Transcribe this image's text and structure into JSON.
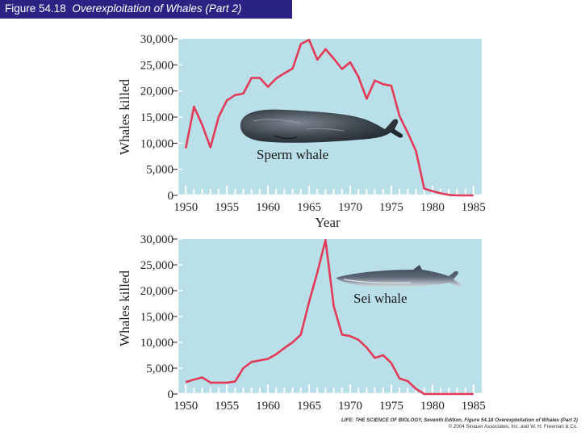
{
  "title": {
    "figure": "Figure 54.18",
    "subtitle": "Overexploitation of Whales (Part 2)"
  },
  "colors": {
    "title_bg": "#2b2383",
    "plot_bg": "#b9dfe9",
    "line": "#e23a57",
    "tick": "#222222"
  },
  "credit": {
    "line1": "LIFE: THE SCIENCE OF BIOLOGY, Seventh Edition, Figure 54.18 Overexploitation of Whales (Part 2)",
    "line2": "© 2004 Sinauer Associates, Inc. and W. H. Freeman & Co."
  },
  "chart_data": [
    {
      "type": "line",
      "title": "",
      "annotation": "Sperm whale",
      "xlabel": "Year",
      "ylabel": "Whales killed",
      "xlim": [
        1949,
        1986
      ],
      "ylim": [
        0,
        30000
      ],
      "xticks": [
        1950,
        1955,
        1960,
        1965,
        1970,
        1975,
        1980,
        1985
      ],
      "yticks": [
        0,
        5000,
        10000,
        15000,
        20000,
        25000,
        30000
      ],
      "ytick_labels": [
        "0",
        "5,000",
        "10,000",
        "15,000",
        "20,000",
        "25,000",
        "30,000"
      ],
      "x": [
        1950,
        1951,
        1952,
        1953,
        1954,
        1955,
        1956,
        1957,
        1958,
        1959,
        1960,
        1961,
        1962,
        1963,
        1964,
        1965,
        1966,
        1967,
        1968,
        1969,
        1970,
        1971,
        1972,
        1973,
        1974,
        1975,
        1976,
        1977,
        1978,
        1979,
        1980,
        1981,
        1982,
        1983,
        1984,
        1985
      ],
      "values": [
        9000,
        17000,
        13500,
        9200,
        15000,
        18200,
        19200,
        19500,
        22500,
        22500,
        20800,
        22400,
        23400,
        24300,
        29000,
        29800,
        26000,
        28000,
        26200,
        24200,
        25500,
        22700,
        18500,
        22000,
        21300,
        21000,
        15200,
        12000,
        8500,
        1300,
        800,
        400,
        100,
        0,
        0,
        0
      ]
    },
    {
      "type": "line",
      "title": "",
      "annotation": "Sei whale",
      "xlabel": "",
      "ylabel": "Whales killed",
      "xlim": [
        1949,
        1986
      ],
      "ylim": [
        0,
        30000
      ],
      "xticks": [
        1950,
        1955,
        1960,
        1965,
        1970,
        1975,
        1980,
        1985
      ],
      "yticks": [
        0,
        5000,
        10000,
        15000,
        20000,
        25000,
        30000
      ],
      "ytick_labels": [
        "0",
        "5,000",
        "10,000",
        "15,000",
        "20,000",
        "25,000",
        "30,000"
      ],
      "x": [
        1950,
        1951,
        1952,
        1953,
        1954,
        1955,
        1956,
        1957,
        1958,
        1959,
        1960,
        1961,
        1962,
        1963,
        1964,
        1965,
        1966,
        1967,
        1968,
        1969,
        1970,
        1971,
        1972,
        1973,
        1974,
        1975,
        1976,
        1977,
        1978,
        1979,
        1980,
        1981,
        1982,
        1983,
        1984,
        1985
      ],
      "values": [
        2300,
        2800,
        3200,
        2200,
        2200,
        2200,
        2400,
        5000,
        6200,
        6500,
        6800,
        7700,
        8900,
        10000,
        11500,
        17800,
        23500,
        29800,
        17000,
        11500,
        11200,
        10500,
        9000,
        7000,
        7500,
        6000,
        3000,
        2500,
        1000,
        0,
        0,
        0,
        0,
        0,
        0,
        0
      ]
    }
  ]
}
